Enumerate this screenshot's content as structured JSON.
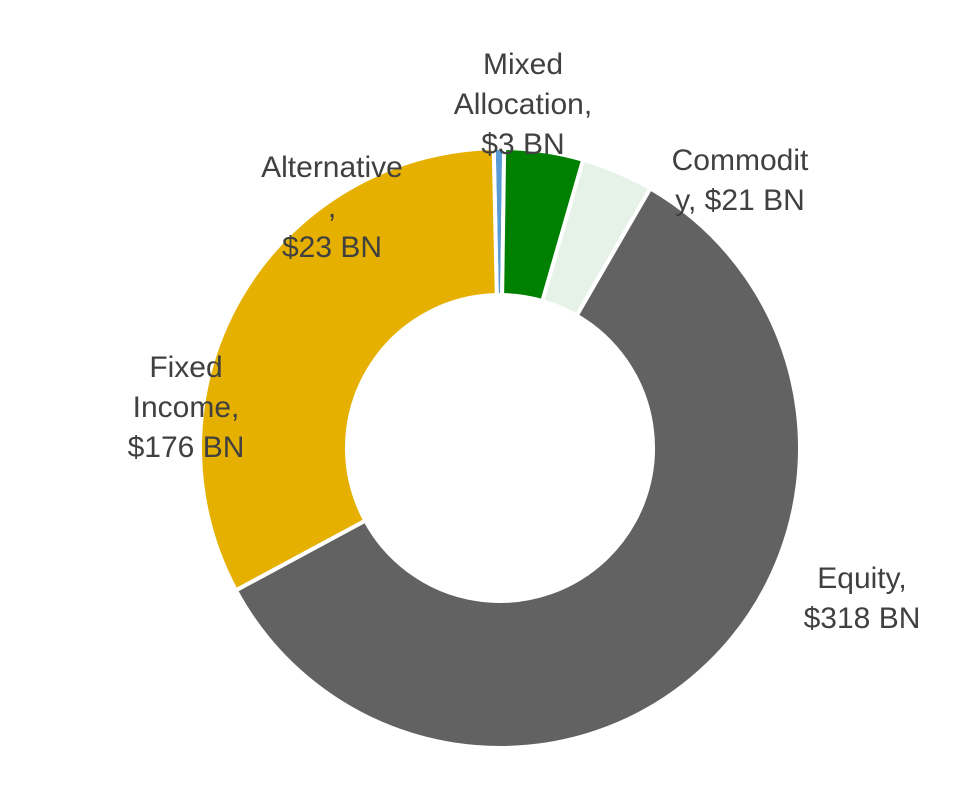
{
  "chart_data": {
    "type": "pie",
    "variant": "donut",
    "unit": "BN",
    "slices": [
      {
        "label": "Equity",
        "value": 318,
        "color": "#626262",
        "label_lines": [
          "Equity,",
          "$318 BN"
        ]
      },
      {
        "label": "Fixed Income",
        "value": 176,
        "color": "#E6B000",
        "label_lines": [
          "Fixed",
          "Income,",
          "$176 BN"
        ]
      },
      {
        "label": "Alternative",
        "value": 23,
        "color": "#008000",
        "label_lines": [
          "Alternative",
          ",",
          "$23 BN"
        ]
      },
      {
        "label": "Mixed Allocation",
        "value": 3,
        "color": "#5B9BD5",
        "label_lines": [
          "Mixed",
          "Allocation,",
          "$3 BN"
        ]
      },
      {
        "label": "Commodity",
        "value": 21,
        "color": "#E6F2E8",
        "label_lines": [
          "Commodit",
          "y, $21 BN"
        ]
      }
    ],
    "legend": "none"
  }
}
